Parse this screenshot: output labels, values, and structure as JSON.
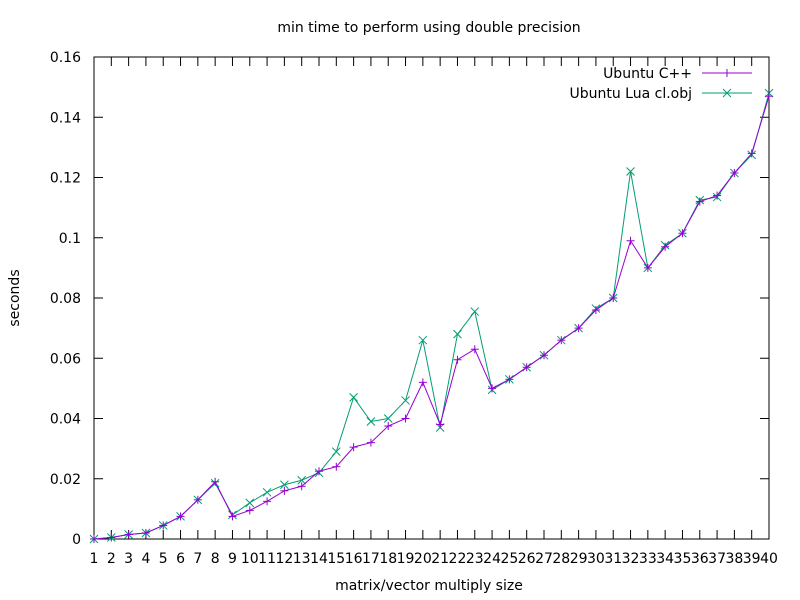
{
  "chart_data": {
    "type": "line",
    "title": "min time to perform using double precision",
    "xlabel": "matrix/vector multiply size",
    "ylabel": "seconds",
    "xlim": [
      1,
      40
    ],
    "ylim": [
      0,
      0.16
    ],
    "y_ticks": [
      "0",
      "0.02",
      "0.04",
      "0.06",
      "0.08",
      "0.1",
      "0.12",
      "0.14",
      "0.16"
    ],
    "x": [
      1,
      2,
      3,
      4,
      5,
      6,
      7,
      8,
      9,
      10,
      11,
      12,
      13,
      14,
      15,
      16,
      17,
      18,
      19,
      20,
      21,
      22,
      23,
      24,
      25,
      26,
      27,
      28,
      29,
      30,
      31,
      32,
      33,
      34,
      35,
      36,
      37,
      38,
      39,
      40
    ],
    "legend": "top-right",
    "grid": false,
    "series": [
      {
        "name": "Ubuntu C++",
        "color": "#9400d3",
        "marker": "plus",
        "values": [
          0,
          0.0005,
          0.0015,
          0.002,
          0.0045,
          0.0075,
          0.013,
          0.019,
          0.0075,
          0.0095,
          0.0125,
          0.016,
          0.0175,
          0.0225,
          0.024,
          0.0305,
          0.032,
          0.0375,
          0.04,
          0.052,
          0.038,
          0.0595,
          0.063,
          0.05,
          0.053,
          0.057,
          0.061,
          0.066,
          0.07,
          0.076,
          0.08,
          0.099,
          0.09,
          0.097,
          0.1015,
          0.112,
          0.114,
          0.1215,
          0.128,
          0.147
        ]
      },
      {
        "name": "Ubuntu Lua cl.obj",
        "color": "#009e73",
        "marker": "cross",
        "values": [
          0,
          0.0005,
          0.0015,
          0.002,
          0.0045,
          0.0075,
          0.013,
          0.0185,
          0.008,
          0.012,
          0.0155,
          0.018,
          0.0195,
          0.022,
          0.029,
          0.047,
          0.039,
          0.04,
          0.046,
          0.066,
          0.037,
          0.068,
          0.0755,
          0.0495,
          0.053,
          0.057,
          0.061,
          0.066,
          0.07,
          0.0765,
          0.08,
          0.122,
          0.09,
          0.0975,
          0.1015,
          0.1125,
          0.1135,
          0.1215,
          0.1275,
          0.148
        ]
      }
    ]
  }
}
